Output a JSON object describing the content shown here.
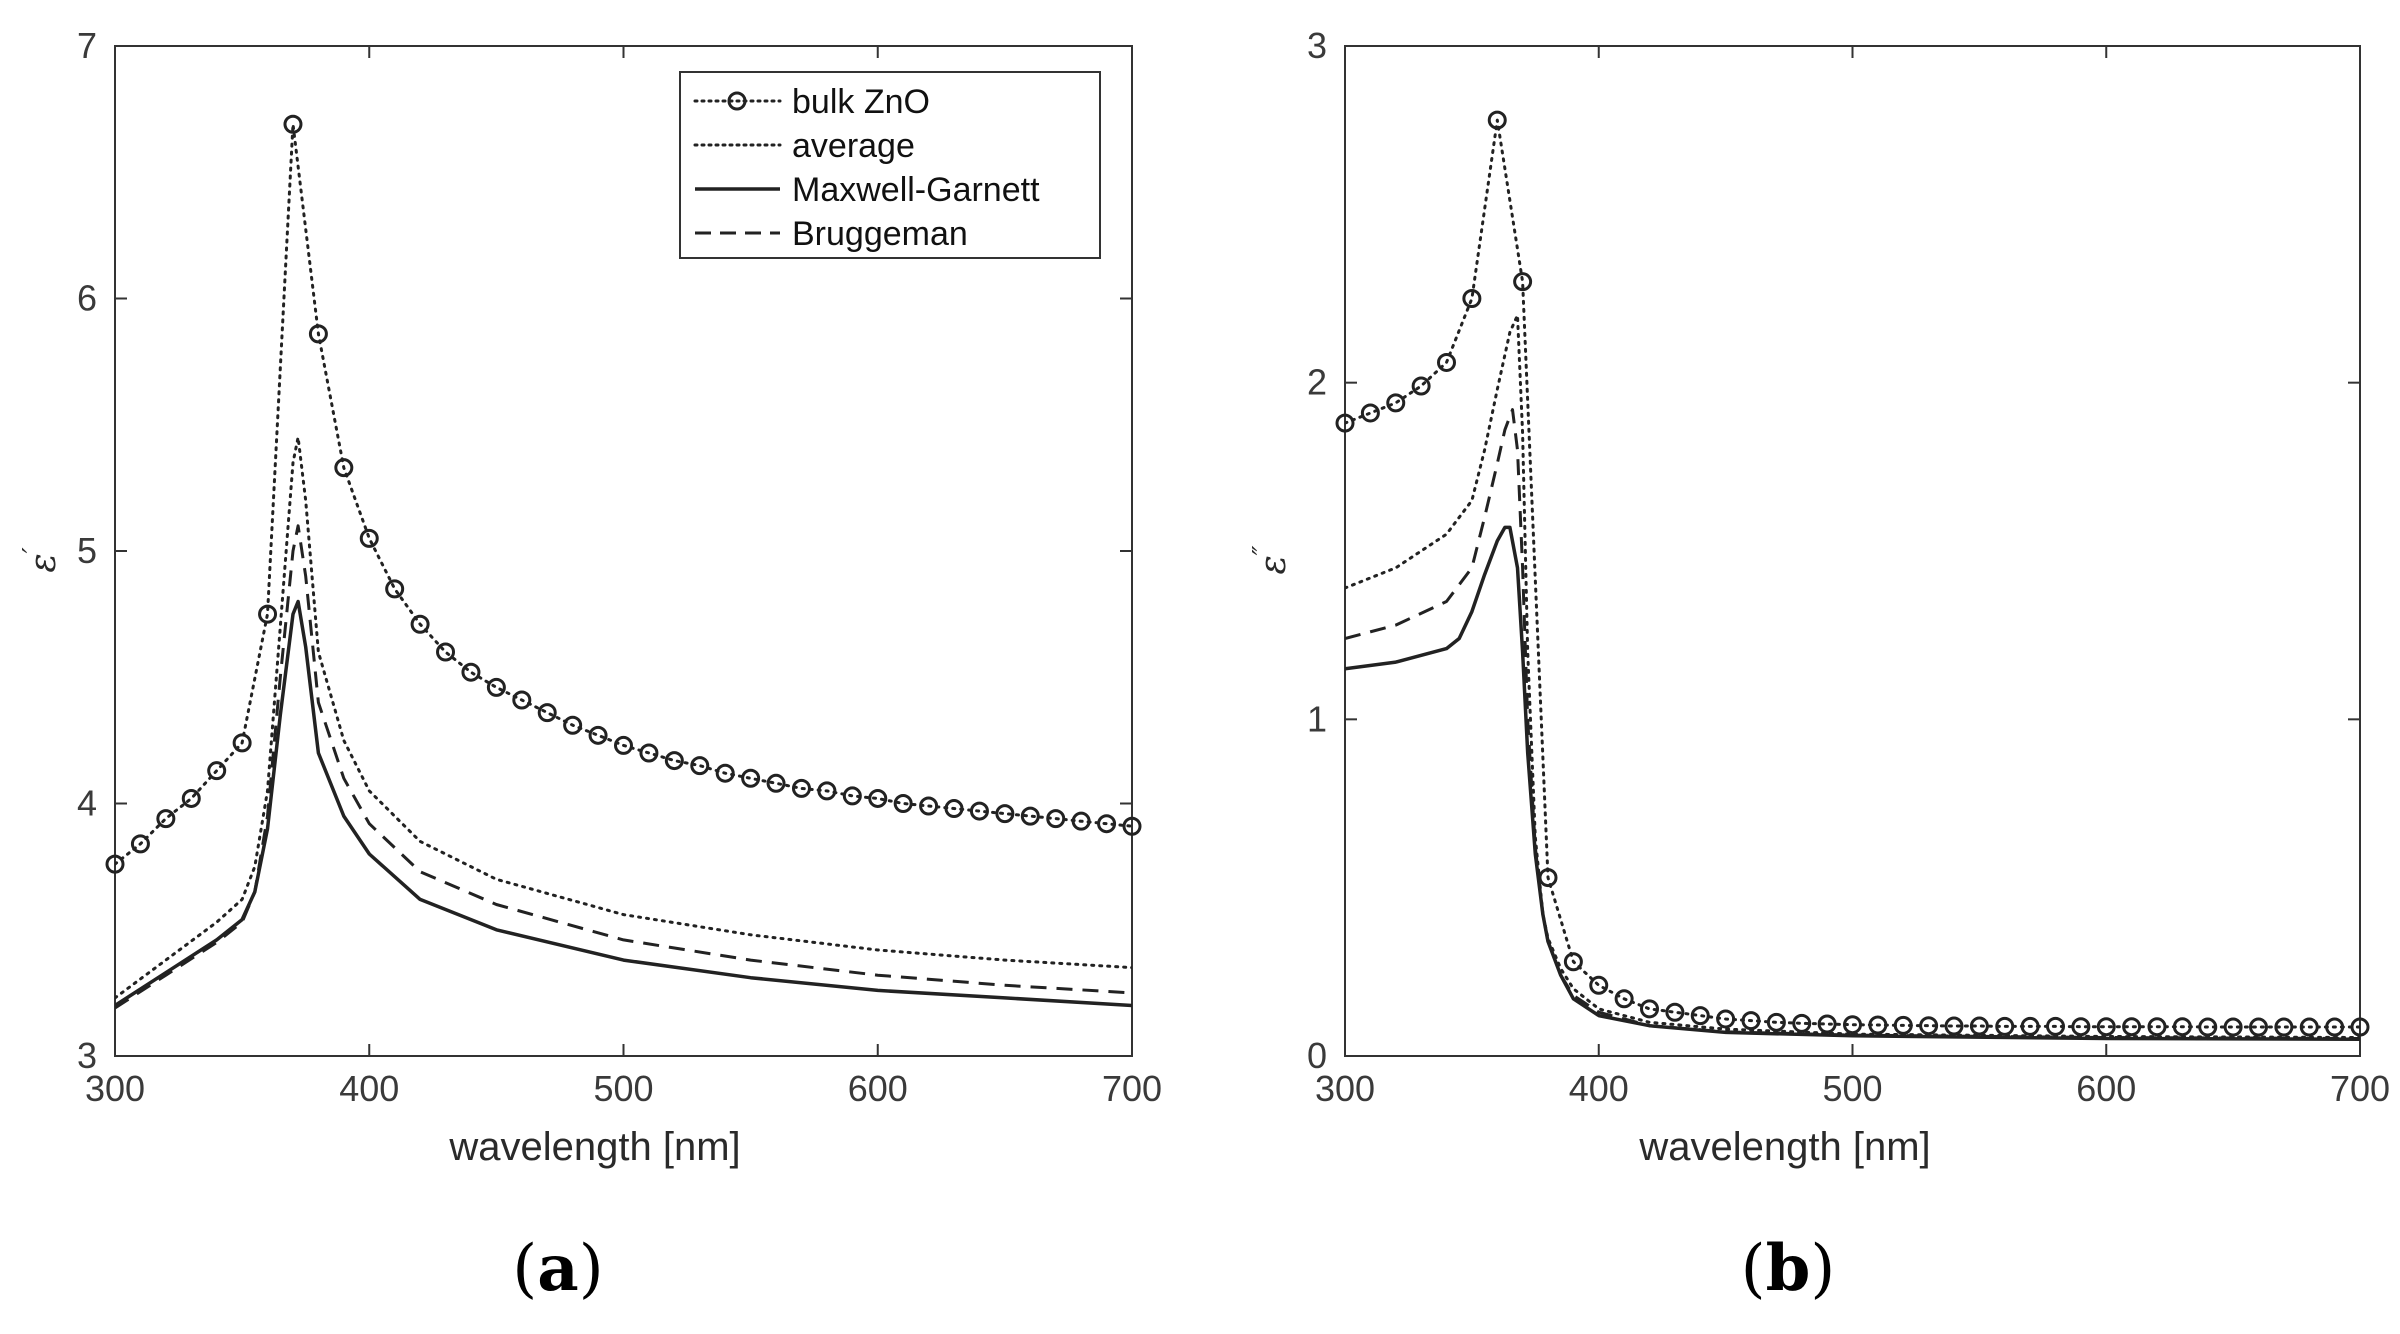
{
  "chart_data": [
    {
      "type": "line",
      "panel_label": "a",
      "xlabel": "wavelength [nm]",
      "ylabel": "ε′",
      "ylabel_base": "ε",
      "ylabel_mark": "′",
      "xlim": [
        300,
        700
      ],
      "ylim": [
        3,
        7
      ],
      "xticks": [
        "300",
        "400",
        "500",
        "600",
        "700"
      ],
      "yticks": [
        "3",
        "4",
        "5",
        "6",
        "7"
      ],
      "legend": {
        "placement": "top-right",
        "entries": [
          "bulk ZnO",
          "average",
          "Maxwell-Garnett",
          "Bruggeman"
        ]
      },
      "series": [
        {
          "name": "bulk ZnO",
          "style": "dotted-circle",
          "x": [
            300,
            310,
            320,
            330,
            340,
            350,
            360,
            370,
            380,
            390,
            400,
            410,
            420,
            430,
            440,
            450,
            460,
            470,
            480,
            490,
            500,
            510,
            520,
            530,
            540,
            550,
            560,
            570,
            580,
            590,
            600,
            610,
            620,
            630,
            640,
            650,
            660,
            670,
            680,
            690,
            700
          ],
          "y": [
            3.76,
            3.84,
            3.94,
            4.02,
            4.13,
            4.24,
            4.75,
            6.69,
            5.86,
            5.33,
            5.05,
            4.85,
            4.71,
            4.6,
            4.52,
            4.46,
            4.41,
            4.36,
            4.31,
            4.27,
            4.23,
            4.2,
            4.17,
            4.15,
            4.12,
            4.1,
            4.08,
            4.06,
            4.05,
            4.03,
            4.02,
            4.0,
            3.99,
            3.98,
            3.97,
            3.96,
            3.95,
            3.94,
            3.93,
            3.92,
            3.91
          ]
        },
        {
          "name": "average",
          "style": "dotted",
          "x": [
            300,
            320,
            340,
            350,
            355,
            360,
            365,
            370,
            372,
            375,
            380,
            390,
            400,
            420,
            450,
            500,
            550,
            600,
            650,
            700
          ],
          "y": [
            3.23,
            3.38,
            3.53,
            3.62,
            3.75,
            4.05,
            4.7,
            5.35,
            5.45,
            5.2,
            4.6,
            4.25,
            4.05,
            3.85,
            3.7,
            3.56,
            3.48,
            3.42,
            3.38,
            3.35
          ]
        },
        {
          "name": "Maxwell-Garnett",
          "style": "solid",
          "x": [
            300,
            320,
            340,
            350,
            355,
            360,
            365,
            370,
            372,
            375,
            380,
            390,
            400,
            420,
            450,
            500,
            550,
            600,
            650,
            700
          ],
          "y": [
            3.2,
            3.33,
            3.46,
            3.54,
            3.65,
            3.9,
            4.35,
            4.75,
            4.8,
            4.62,
            4.2,
            3.95,
            3.8,
            3.62,
            3.5,
            3.38,
            3.31,
            3.26,
            3.23,
            3.2
          ]
        },
        {
          "name": "Bruggeman",
          "style": "dashed",
          "x": [
            300,
            320,
            340,
            350,
            355,
            360,
            365,
            370,
            372,
            375,
            380,
            390,
            400,
            420,
            450,
            500,
            550,
            600,
            650,
            700
          ],
          "y": [
            3.19,
            3.32,
            3.45,
            3.53,
            3.65,
            3.95,
            4.5,
            5.0,
            5.1,
            4.9,
            4.4,
            4.1,
            3.92,
            3.73,
            3.6,
            3.46,
            3.38,
            3.32,
            3.28,
            3.25
          ]
        }
      ]
    },
    {
      "type": "line",
      "panel_label": "b",
      "xlabel": "wavelength [nm]",
      "ylabel": "ε″",
      "ylabel_base": "ε",
      "ylabel_mark": "″",
      "xlim": [
        300,
        700
      ],
      "ylim": [
        0,
        3
      ],
      "xticks": [
        "300",
        "400",
        "500",
        "600",
        "700"
      ],
      "yticks": [
        "0",
        "1",
        "2",
        "3"
      ],
      "series": [
        {
          "name": "bulk ZnO",
          "style": "dotted-circle",
          "x": [
            300,
            310,
            320,
            330,
            340,
            350,
            360,
            370,
            380,
            390,
            400,
            410,
            420,
            430,
            440,
            450,
            460,
            470,
            480,
            490,
            500,
            510,
            520,
            530,
            540,
            550,
            560,
            570,
            580,
            590,
            600,
            610,
            620,
            630,
            640,
            650,
            660,
            670,
            680,
            690,
            700
          ],
          "y": [
            1.88,
            1.91,
            1.94,
            1.99,
            2.06,
            2.25,
            2.78,
            2.3,
            0.53,
            0.28,
            0.21,
            0.17,
            0.14,
            0.13,
            0.12,
            0.11,
            0.105,
            0.1,
            0.097,
            0.095,
            0.093,
            0.092,
            0.091,
            0.09,
            0.089,
            0.089,
            0.088,
            0.088,
            0.088,
            0.087,
            0.087,
            0.087,
            0.087,
            0.087,
            0.086,
            0.086,
            0.086,
            0.086,
            0.086,
            0.086,
            0.086
          ]
        },
        {
          "name": "average",
          "style": "dotted",
          "x": [
            300,
            320,
            340,
            350,
            355,
            360,
            365,
            368,
            370,
            372,
            375,
            378,
            380,
            385,
            390,
            400,
            420,
            450,
            500,
            600,
            700
          ],
          "y": [
            1.39,
            1.45,
            1.55,
            1.65,
            1.8,
            1.98,
            2.15,
            2.2,
            1.85,
            1.2,
            0.65,
            0.42,
            0.35,
            0.26,
            0.2,
            0.14,
            0.1,
            0.08,
            0.065,
            0.058,
            0.055
          ]
        },
        {
          "name": "Maxwell-Garnett",
          "style": "solid",
          "x": [
            300,
            320,
            340,
            345,
            350,
            355,
            360,
            363,
            365,
            368,
            370,
            372,
            375,
            378,
            380,
            385,
            390,
            400,
            420,
            450,
            500,
            600,
            700
          ],
          "y": [
            1.15,
            1.17,
            1.21,
            1.24,
            1.32,
            1.43,
            1.53,
            1.57,
            1.57,
            1.45,
            1.2,
            0.9,
            0.6,
            0.42,
            0.34,
            0.24,
            0.17,
            0.12,
            0.09,
            0.07,
            0.06,
            0.052,
            0.05
          ]
        },
        {
          "name": "Bruggeman",
          "style": "dashed",
          "x": [
            300,
            320,
            340,
            350,
            355,
            360,
            363,
            366,
            368,
            370,
            372,
            375,
            378,
            380,
            385,
            390,
            400,
            420,
            450,
            500,
            600,
            700
          ],
          "y": [
            1.24,
            1.28,
            1.35,
            1.45,
            1.6,
            1.76,
            1.86,
            1.92,
            1.8,
            1.45,
            1.0,
            0.62,
            0.42,
            0.34,
            0.24,
            0.18,
            0.13,
            0.09,
            0.072,
            0.062,
            0.055,
            0.052
          ]
        }
      ]
    }
  ]
}
